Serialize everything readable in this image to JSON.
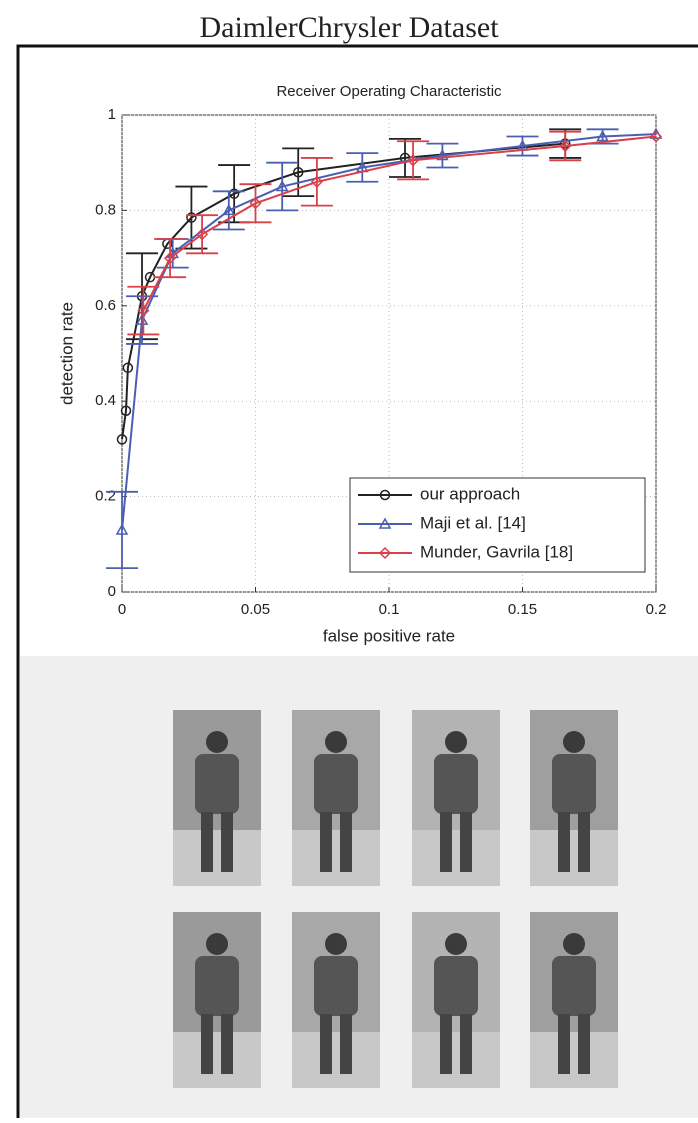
{
  "header": {
    "title": "DaimlerChrysler Dataset"
  },
  "chart_data": {
    "type": "line",
    "title": "Receiver Operating Characteristic",
    "xlabel": "false positive rate",
    "ylabel": "detection rate",
    "xlim": [
      0,
      0.2
    ],
    "ylim": [
      0,
      1
    ],
    "xticks": [
      0,
      0.05,
      0.1,
      0.15,
      0.2
    ],
    "yticks": [
      0,
      0.2,
      0.4,
      0.6,
      0.8,
      1
    ],
    "grid": true,
    "legend": "lower right",
    "series": [
      {
        "name": "our approach",
        "color": "#222222",
        "marker": "circle",
        "x": [
          0.0,
          0.0015,
          0.0022,
          0.0075,
          0.0105,
          0.017,
          0.026,
          0.042,
          0.066,
          0.106,
          0.166
        ],
        "values": [
          0.32,
          0.38,
          0.47,
          0.62,
          0.66,
          0.73,
          0.785,
          0.835,
          0.88,
          0.91,
          0.94
        ],
        "errors": [
          null,
          null,
          null,
          0.09,
          null,
          null,
          0.065,
          0.06,
          0.05,
          0.04,
          0.03
        ]
      },
      {
        "name": "Maji et al. [14]",
        "color": "#4a5fb0",
        "marker": "triangle",
        "x": [
          0.0,
          0.0075,
          0.019,
          0.04,
          0.06,
          0.09,
          0.12,
          0.15,
          0.18,
          0.2
        ],
        "values": [
          0.13,
          0.57,
          0.71,
          0.8,
          0.85,
          0.89,
          0.915,
          0.935,
          0.955,
          0.96
        ],
        "errors": [
          0.08,
          0.05,
          0.03,
          0.04,
          0.05,
          0.03,
          0.025,
          0.02,
          0.015,
          null
        ]
      },
      {
        "name": "Munder, Gavrila [18]",
        "color": "#d9404a",
        "marker": "diamond",
        "x": [
          0.008,
          0.018,
          0.03,
          0.05,
          0.073,
          0.109,
          0.166,
          0.2
        ],
        "values": [
          0.59,
          0.7,
          0.75,
          0.815,
          0.86,
          0.905,
          0.935,
          0.955
        ],
        "errors": [
          0.05,
          0.04,
          0.04,
          0.04,
          0.05,
          0.04,
          0.03,
          null
        ]
      }
    ]
  }
}
